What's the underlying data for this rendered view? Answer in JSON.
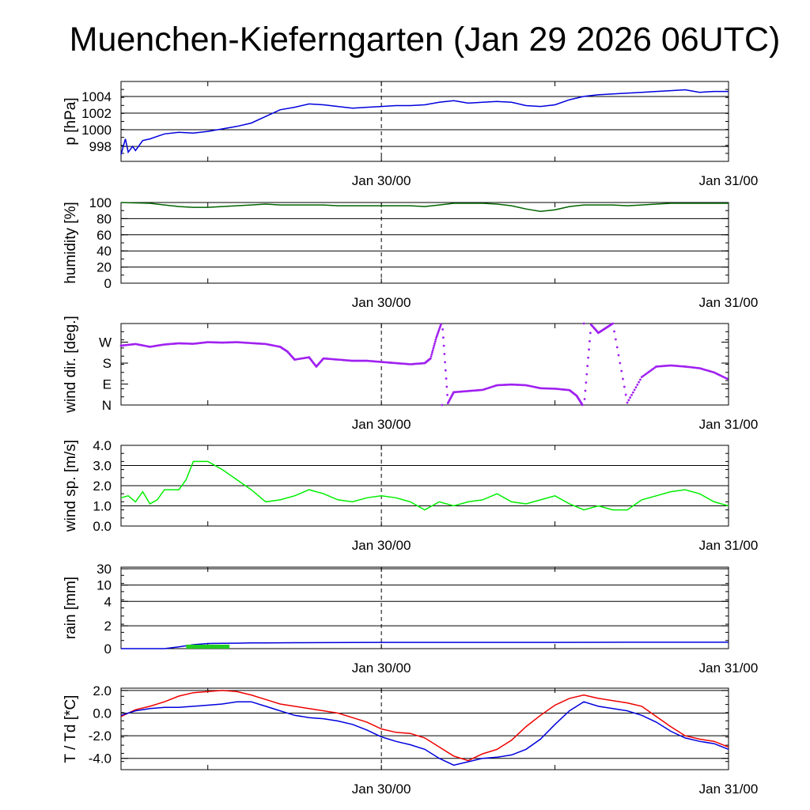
{
  "title": "Muenchen-Kieferngarten (Jan 29 2026 06UTC)",
  "time_axis": {
    "unit": "hours since Jan 29 06UTC",
    "range": [
      0,
      42
    ],
    "tick_labels": [
      {
        "hour": 18,
        "label": "Jan 30/00"
      },
      {
        "hour": 42,
        "label": "Jan 31/00"
      }
    ],
    "minor_ticks": [
      6,
      18,
      30,
      42
    ],
    "dashed_marker_hour": 18
  },
  "chart_data": [
    {
      "type": "line",
      "ylabel": "p [hPa]",
      "ylim": [
        996.2,
        1005.8
      ],
      "yticks": [
        998,
        1000,
        1002,
        1004
      ],
      "ytick_labels": [
        "998",
        "1000",
        "1002",
        "1004"
      ],
      "grid": true,
      "series": [
        {
          "name": "pressure",
          "color": "#0000dd",
          "x": [
            0,
            0.3,
            0.5,
            0.8,
            1,
            1.5,
            2,
            2.5,
            3,
            4,
            5,
            6,
            7,
            8,
            9,
            10,
            11,
            12,
            13,
            14,
            15,
            16,
            17,
            18,
            19,
            20,
            21,
            22,
            23,
            24,
            25,
            26,
            27,
            28,
            29,
            30,
            31,
            32,
            33,
            34,
            35,
            36,
            37,
            38,
            39,
            40,
            41,
            42
          ],
          "y": [
            997,
            998.9,
            997.3,
            998,
            997.5,
            998.7,
            998.9,
            999.2,
            999.5,
            999.7,
            999.6,
            999.8,
            1000.1,
            1000.4,
            1000.8,
            1001.6,
            1002.4,
            1002.7,
            1003.1,
            1003.0,
            1002.8,
            1002.6,
            1002.7,
            1002.8,
            1002.9,
            1002.9,
            1003.0,
            1003.3,
            1003.5,
            1003.2,
            1003.3,
            1003.4,
            1003.3,
            1002.9,
            1002.8,
            1003.0,
            1003.6,
            1004.0,
            1004.2,
            1004.3,
            1004.4,
            1004.5,
            1004.6,
            1004.7,
            1004.8,
            1004.5,
            1004.6,
            1004.6
          ]
        }
      ]
    },
    {
      "type": "line",
      "ylabel": "humidity [%]",
      "ylim": [
        0,
        100
      ],
      "yticks": [
        0,
        20,
        40,
        60,
        80,
        100
      ],
      "ytick_labels": [
        "0",
        "20",
        "40",
        "60",
        "80",
        "100"
      ],
      "grid": true,
      "series": [
        {
          "name": "humidity",
          "color": "#006400",
          "x": [
            0,
            2,
            3,
            4,
            5,
            6,
            7,
            8,
            9,
            10,
            11,
            12,
            13,
            14,
            15,
            16,
            17,
            18,
            19,
            20,
            21,
            22,
            23,
            24,
            25,
            26,
            27,
            28,
            29,
            30,
            31,
            32,
            33,
            34,
            35,
            36,
            37,
            38,
            39,
            40,
            41,
            42
          ],
          "y": [
            100,
            99,
            97,
            95,
            94,
            94,
            95,
            96,
            97,
            98,
            97,
            97,
            97,
            97,
            96,
            96,
            96,
            96,
            96,
            96,
            95,
            97,
            99,
            99,
            99,
            98,
            96,
            92,
            89,
            91,
            95,
            97,
            97,
            97,
            96,
            97,
            98,
            99,
            99,
            99,
            99,
            99
          ]
        }
      ]
    },
    {
      "type": "scatter",
      "ylabel": "wind dir. [deg.]",
      "ylim": [
        0,
        350
      ],
      "yticks": [
        0,
        90,
        180,
        270
      ],
      "ytick_labels": [
        "N",
        "E",
        "S",
        "W"
      ],
      "grid": false,
      "series": [
        {
          "name": "wind direction",
          "color": "#a020f0",
          "x": [
            0,
            1,
            2,
            3,
            4,
            5,
            6,
            7,
            8,
            9,
            10,
            11,
            11.5,
            12,
            13,
            13.5,
            14,
            15,
            16,
            17,
            18,
            19,
            20,
            21,
            21.4,
            21.8,
            22.2,
            22.6,
            23,
            24,
            25,
            26,
            27,
            28,
            29,
            30,
            31,
            31.5,
            31.8,
            32,
            32.5,
            33,
            33.5,
            34,
            35,
            36,
            37,
            38,
            39,
            40,
            41,
            42
          ],
          "y": [
            255,
            262,
            250,
            260,
            265,
            263,
            270,
            268,
            270,
            266,
            262,
            250,
            230,
            195,
            205,
            165,
            200,
            195,
            190,
            190,
            185,
            180,
            175,
            180,
            200,
            290,
            360,
            8,
            55,
            60,
            65,
            85,
            88,
            85,
            72,
            70,
            64,
            40,
            10,
            -10,
            345,
            310,
            330,
            350,
            10,
            120,
            165,
            170,
            165,
            158,
            140,
            110
          ]
        }
      ]
    },
    {
      "type": "line",
      "ylabel": "wind sp. [m/s]",
      "ylim": [
        0,
        4
      ],
      "yticks": [
        0,
        1,
        2,
        3,
        4
      ],
      "ytick_labels": [
        "0.0",
        "1.0",
        "2.0",
        "3.0",
        "4.0"
      ],
      "grid": true,
      "series": [
        {
          "name": "wind speed",
          "color": "#00ee00",
          "x": [
            0,
            0.5,
            1,
            1.5,
            2,
            2.5,
            3,
            4,
            4.5,
            5,
            6,
            7,
            8,
            9,
            10,
            11,
            12,
            13,
            14,
            15,
            16,
            17,
            18,
            19,
            20,
            21,
            22,
            23,
            24,
            25,
            26,
            27,
            28,
            29,
            30,
            31,
            32,
            33,
            34,
            35,
            36,
            37,
            38,
            39,
            40,
            41,
            42
          ],
          "y": [
            1.4,
            1.5,
            1.2,
            1.7,
            1.1,
            1.3,
            1.8,
            1.8,
            2.3,
            3.2,
            3.2,
            2.8,
            2.3,
            1.8,
            1.2,
            1.3,
            1.5,
            1.8,
            1.6,
            1.3,
            1.2,
            1.4,
            1.5,
            1.4,
            1.2,
            0.8,
            1.2,
            1.0,
            1.2,
            1.3,
            1.6,
            1.2,
            1.1,
            1.3,
            1.5,
            1.1,
            0.8,
            1.0,
            0.8,
            0.8,
            1.3,
            1.5,
            1.7,
            1.8,
            1.6,
            1.2,
            1.0
          ]
        }
      ]
    },
    {
      "type": "area",
      "ylabel": "rain [mm]",
      "yticks": [
        0,
        2,
        4,
        10,
        30
      ],
      "ytick_labels": [
        "0",
        "2",
        "4",
        "10",
        "30"
      ],
      "y_scale": "compressed (0, 2, 4, 10, 30 equally spaced above 0)",
      "grid": true,
      "series": [
        {
          "name": "accumulated rain",
          "color": "#0000dd",
          "x": [
            0,
            3,
            4,
            5,
            6,
            7,
            8,
            9,
            10,
            12,
            14,
            16,
            18,
            20,
            25,
            30,
            35,
            40,
            42
          ],
          "y": [
            0,
            0,
            0.15,
            0.35,
            0.45,
            0.47,
            0.48,
            0.5,
            0.5,
            0.52,
            0.53,
            0.54,
            0.55,
            0.55,
            0.55,
            0.55,
            0.56,
            0.56,
            0.56
          ]
        },
        {
          "name": "hourly rain",
          "color": "#22cc22",
          "x": [
            4.5,
            7.5
          ],
          "y": [
            0.35,
            0.35
          ]
        }
      ]
    },
    {
      "type": "line",
      "ylabel": "T / Td [*C]",
      "ylim": [
        -5,
        2.2
      ],
      "yticks": [
        -4,
        -2,
        0,
        2
      ],
      "ytick_labels": [
        "-4.0",
        "-2.0",
        "0.0",
        "2.0"
      ],
      "grid": true,
      "series": [
        {
          "name": "T",
          "color": "#ee0000",
          "x": [
            0,
            1,
            2,
            3,
            4,
            5,
            6,
            7,
            8,
            9,
            10,
            11,
            12,
            13,
            14,
            15,
            16,
            17,
            18,
            19,
            20,
            21,
            22,
            23,
            24,
            25,
            26,
            27,
            28,
            29,
            30,
            31,
            32,
            33,
            34,
            35,
            36,
            37,
            38,
            39,
            40,
            41,
            42
          ],
          "y": [
            -0.3,
            0.3,
            0.6,
            1.0,
            1.5,
            1.8,
            1.9,
            2.0,
            1.9,
            1.6,
            1.2,
            0.8,
            0.6,
            0.4,
            0.2,
            0.0,
            -0.4,
            -0.8,
            -1.4,
            -1.7,
            -1.8,
            -2.2,
            -3.0,
            -3.8,
            -4.2,
            -3.6,
            -3.2,
            -2.4,
            -1.2,
            -0.2,
            0.7,
            1.3,
            1.6,
            1.3,
            1.1,
            0.9,
            0.6,
            -0.3,
            -1.2,
            -2.0,
            -2.3,
            -2.5,
            -3.0
          ]
        },
        {
          "name": "Td",
          "color": "#0000dd",
          "x": [
            0,
            1,
            2,
            3,
            4,
            5,
            6,
            7,
            8,
            9,
            10,
            11,
            12,
            13,
            14,
            15,
            16,
            17,
            18,
            19,
            20,
            21,
            22,
            23,
            24,
            25,
            26,
            27,
            28,
            29,
            30,
            31,
            32,
            33,
            34,
            35,
            36,
            37,
            38,
            39,
            40,
            41,
            42
          ],
          "y": [
            -0.2,
            0.2,
            0.4,
            0.5,
            0.5,
            0.6,
            0.7,
            0.8,
            1.0,
            1.0,
            0.6,
            0.2,
            -0.2,
            -0.4,
            -0.5,
            -0.7,
            -1.0,
            -1.5,
            -2.1,
            -2.5,
            -2.8,
            -3.2,
            -4.0,
            -4.6,
            -4.3,
            -4.0,
            -3.9,
            -3.7,
            -3.2,
            -2.3,
            -1.0,
            0.2,
            1.0,
            0.6,
            0.4,
            0.2,
            -0.2,
            -0.8,
            -1.6,
            -2.2,
            -2.5,
            -2.7,
            -3.2
          ]
        }
      ]
    }
  ]
}
